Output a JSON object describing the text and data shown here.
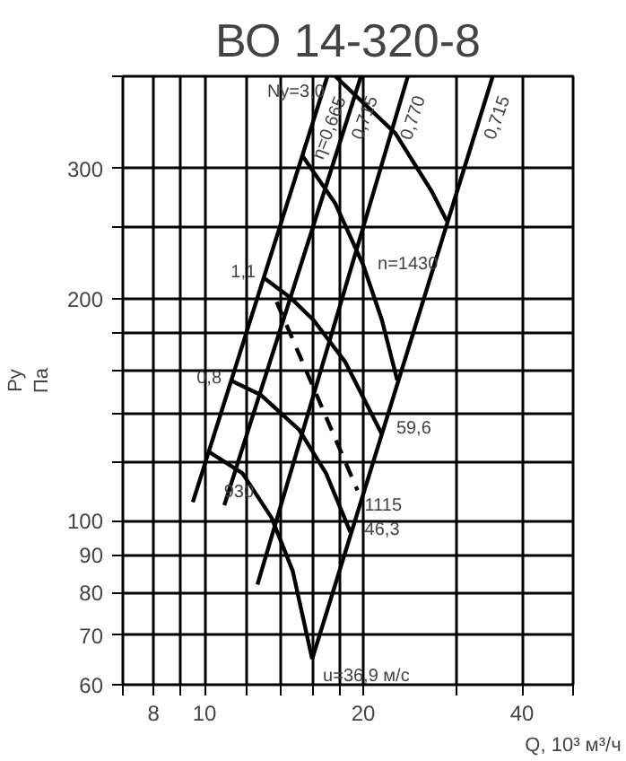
{
  "chart_data": {
    "type": "line",
    "title": "ВО 14-320-8",
    "xlabel": "Q, 10³ м³/ч",
    "ylabel": "Py\nПа",
    "log": "xy",
    "grid": true,
    "xlim": [
      7,
      50
    ],
    "xticks": [
      {
        "value": 7,
        "label": null
      },
      8,
      {
        "value": 9,
        "label": null
      },
      10,
      {
        "value": 12,
        "label": null
      },
      {
        "value": 14,
        "label": null
      },
      {
        "value": 16,
        "label": null
      },
      {
        "value": 18,
        "label": null
      },
      20,
      {
        "value": 30,
        "label": null
      },
      40,
      {
        "value": 50,
        "label": null
      }
    ],
    "ylim": [
      60,
      400
    ],
    "yticks": [
      60,
      70,
      80,
      90,
      100,
      {
        "value": 120,
        "label": null
      },
      {
        "value": 140,
        "label": null
      },
      {
        "value": 160,
        "label": null
      },
      {
        "value": 180,
        "label": null
      },
      200,
      {
        "value": 250,
        "label": null
      },
      300,
      {
        "value": 400,
        "label": null
      }
    ],
    "series": [
      {
        "color": "#000000",
        "x": [
          17.1,
          9.5
        ],
        "values": [
          400,
          106
        ]
      },
      {
        "color": "#000000",
        "x": [
          19.8,
          10.9
        ],
        "values": [
          400,
          105
        ]
      },
      {
        "color": "#000000",
        "x": [
          24.3,
          12.6
        ],
        "values": [
          400,
          82
        ]
      },
      {
        "color": "#000000",
        "x": [
          35.2,
          16.0
        ],
        "values": [
          400,
          65
        ]
      },
      {
        "color": "#000000",
        "x": [
          17.7,
          23.0,
          27.0,
          28.8
        ],
        "values": [
          400,
          335,
          279,
          255
        ]
      },
      {
        "color": "#000000",
        "x": [
          15.3,
          17.7,
          20.0,
          21.7,
          23.2
        ],
        "values": [
          313,
          269,
          222,
          187,
          155
        ]
      },
      {
        "color": "#000000",
        "x": [
          13.0,
          14.5,
          16.1,
          18.5,
          21.7
        ],
        "values": [
          213,
          201,
          187,
          164,
          131
        ]
      },
      {
        "color": "#000000",
        "x": [
          11.2,
          12.8,
          15.1,
          17.0,
          18.9
        ],
        "values": [
          155,
          148,
          133,
          116,
          96.6
        ]
      },
      {
        "color": "#000000",
        "x": [
          10.2,
          11.8,
          13.4,
          14.7,
          16.0
        ],
        "values": [
          124,
          116,
          101,
          85.5,
          65
        ]
      },
      {
        "color": "#000000",
        "x": [
          13.7,
          19.5
        ],
        "values": [
          198,
          110
        ],
        "line_style": "dashed"
      }
    ],
    "annotations": [
      {
        "text": "η=0,665",
        "x": 17.1,
        "y": 400
      },
      {
        "text": "0,715",
        "x": 19.8,
        "y": 400
      },
      {
        "text": "0,770",
        "x": 24.3,
        "y": 400
      },
      {
        "text": "0,715",
        "x": 35.2,
        "y": 400
      },
      {
        "text": "Ny=3,0",
        "x": 17.7,
        "y": 400
      },
      {
        "text": "1,1",
        "x": 13.0,
        "y": 213
      },
      {
        "text": "0,8",
        "x": 11.2,
        "y": 155
      },
      {
        "text": "930",
        "x": 11.8,
        "y": 116
      },
      {
        "text": "1115",
        "x": 19.5,
        "y": 110
      },
      {
        "text": "n=1430",
        "x": 20.0,
        "y": 222
      },
      {
        "text": "59,6",
        "x": 21.7,
        "y": 131
      },
      {
        "text": "46,3",
        "x": 18.9,
        "y": 96.6
      },
      {
        "text": "u=36,9 м/с",
        "x": 16.0,
        "y": 65
      }
    ]
  }
}
